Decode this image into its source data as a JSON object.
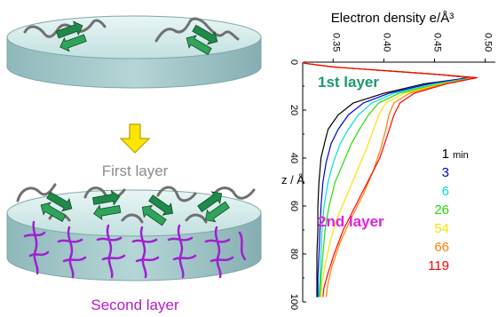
{
  "illustration": {
    "first_layer_label": "First layer",
    "second_layer_label": "Second layer",
    "colors": {
      "disc_top": "#d7ecea",
      "disc_side": "#9fc4c6",
      "arrow": "#ffe600",
      "arrow_edge": "#b8a000",
      "protein": "#1f8a4a",
      "chain": "#707070",
      "second_chains": "#a020d0",
      "first_label": "#8c8c8c",
      "second_label": "#b81bc8"
    }
  },
  "chart_data": {
    "type": "line",
    "title": "Electron density e/Å³",
    "ylabel": "z / Å",
    "x_ticks": [
      "0.35",
      "0.40",
      "0.45",
      "0.50"
    ],
    "y_ticks": [
      "0",
      "20",
      "40",
      "60",
      "80",
      "100"
    ],
    "xlim": [
      0.32,
      0.51
    ],
    "ylim": [
      0,
      100
    ],
    "annotations": {
      "first_layer": "1st layer",
      "second_layer": "2nd layer",
      "first_layer_color": "#1a9a6a",
      "second_layer_color": "#e020e0"
    },
    "legend": {
      "unit": "min",
      "placement": "right"
    },
    "series": [
      {
        "name": "1",
        "color": "#000000",
        "points": [
          [
            0.32,
            0
          ],
          [
            0.322,
            0.5
          ],
          [
            0.35,
            2
          ],
          [
            0.4,
            3.5
          ],
          [
            0.45,
            5
          ],
          [
            0.485,
            6.5
          ],
          [
            0.44,
            9
          ],
          [
            0.4,
            13
          ],
          [
            0.37,
            17
          ],
          [
            0.355,
            22
          ],
          [
            0.345,
            28
          ],
          [
            0.342,
            33
          ],
          [
            0.338,
            40
          ],
          [
            0.336,
            50
          ],
          [
            0.335,
            60
          ],
          [
            0.335,
            70
          ],
          [
            0.334,
            80
          ],
          [
            0.334,
            90
          ],
          [
            0.334,
            98
          ]
        ]
      },
      {
        "name": "3",
        "color": "#0000cc",
        "points": [
          [
            0.32,
            0
          ],
          [
            0.322,
            0.5
          ],
          [
            0.35,
            2
          ],
          [
            0.4,
            3.5
          ],
          [
            0.45,
            5
          ],
          [
            0.485,
            6.5
          ],
          [
            0.445,
            9
          ],
          [
            0.405,
            13
          ],
          [
            0.38,
            17
          ],
          [
            0.365,
            22
          ],
          [
            0.355,
            28
          ],
          [
            0.348,
            34
          ],
          [
            0.343,
            42
          ],
          [
            0.34,
            50
          ],
          [
            0.338,
            60
          ],
          [
            0.337,
            70
          ],
          [
            0.336,
            80
          ],
          [
            0.335,
            90
          ],
          [
            0.335,
            98
          ]
        ]
      },
      {
        "name": "6",
        "color": "#00dddd",
        "points": [
          [
            0.32,
            0
          ],
          [
            0.322,
            0.5
          ],
          [
            0.35,
            2
          ],
          [
            0.4,
            3.5
          ],
          [
            0.45,
            5
          ],
          [
            0.488,
            6.5
          ],
          [
            0.45,
            9
          ],
          [
            0.41,
            13
          ],
          [
            0.388,
            17
          ],
          [
            0.375,
            22
          ],
          [
            0.365,
            28
          ],
          [
            0.357,
            34
          ],
          [
            0.35,
            42
          ],
          [
            0.345,
            50
          ],
          [
            0.341,
            60
          ],
          [
            0.339,
            70
          ],
          [
            0.338,
            80
          ],
          [
            0.337,
            90
          ],
          [
            0.336,
            98
          ]
        ]
      },
      {
        "name": "26",
        "color": "#22dd00",
        "points": [
          [
            0.32,
            0
          ],
          [
            0.322,
            0.5
          ],
          [
            0.35,
            2
          ],
          [
            0.4,
            3.5
          ],
          [
            0.45,
            5
          ],
          [
            0.49,
            6.5
          ],
          [
            0.455,
            9
          ],
          [
            0.415,
            13
          ],
          [
            0.395,
            17
          ],
          [
            0.385,
            22
          ],
          [
            0.376,
            28
          ],
          [
            0.368,
            34
          ],
          [
            0.36,
            42
          ],
          [
            0.352,
            50
          ],
          [
            0.346,
            60
          ],
          [
            0.342,
            70
          ],
          [
            0.34,
            80
          ],
          [
            0.338,
            90
          ],
          [
            0.337,
            98
          ]
        ]
      },
      {
        "name": "54",
        "color": "#ffe000",
        "points": [
          [
            0.32,
            0
          ],
          [
            0.322,
            0.5
          ],
          [
            0.35,
            2
          ],
          [
            0.4,
            3.5
          ],
          [
            0.45,
            5
          ],
          [
            0.49,
            6.5
          ],
          [
            0.458,
            9
          ],
          [
            0.42,
            13
          ],
          [
            0.402,
            17
          ],
          [
            0.395,
            22
          ],
          [
            0.39,
            28
          ],
          [
            0.383,
            36
          ],
          [
            0.374,
            45
          ],
          [
            0.364,
            55
          ],
          [
            0.354,
            65
          ],
          [
            0.347,
            75
          ],
          [
            0.342,
            85
          ],
          [
            0.339,
            92
          ],
          [
            0.338,
            98
          ]
        ]
      },
      {
        "name": "66",
        "color": "#ff8000",
        "points": [
          [
            0.32,
            0
          ],
          [
            0.322,
            0.5
          ],
          [
            0.35,
            2
          ],
          [
            0.4,
            3.5
          ],
          [
            0.45,
            5
          ],
          [
            0.49,
            6.5
          ],
          [
            0.46,
            9
          ],
          [
            0.425,
            13
          ],
          [
            0.41,
            17
          ],
          [
            0.405,
            22
          ],
          [
            0.402,
            28
          ],
          [
            0.397,
            36
          ],
          [
            0.39,
            45
          ],
          [
            0.38,
            55
          ],
          [
            0.368,
            65
          ],
          [
            0.357,
            75
          ],
          [
            0.349,
            85
          ],
          [
            0.345,
            92
          ],
          [
            0.343,
            98
          ]
        ]
      },
      {
        "name": "119",
        "color": "#ff0000",
        "points": [
          [
            0.32,
            0
          ],
          [
            0.322,
            0.5
          ],
          [
            0.35,
            2
          ],
          [
            0.4,
            3.5
          ],
          [
            0.45,
            5
          ],
          [
            0.492,
            6.5
          ],
          [
            0.462,
            9
          ],
          [
            0.43,
            13
          ],
          [
            0.416,
            17
          ],
          [
            0.41,
            22
          ],
          [
            0.404,
            30
          ],
          [
            0.396,
            40
          ],
          [
            0.384,
            50
          ],
          [
            0.372,
            60
          ],
          [
            0.36,
            70
          ],
          [
            0.351,
            80
          ],
          [
            0.345,
            88
          ],
          [
            0.341,
            94
          ],
          [
            0.34,
            98
          ]
        ]
      }
    ]
  }
}
